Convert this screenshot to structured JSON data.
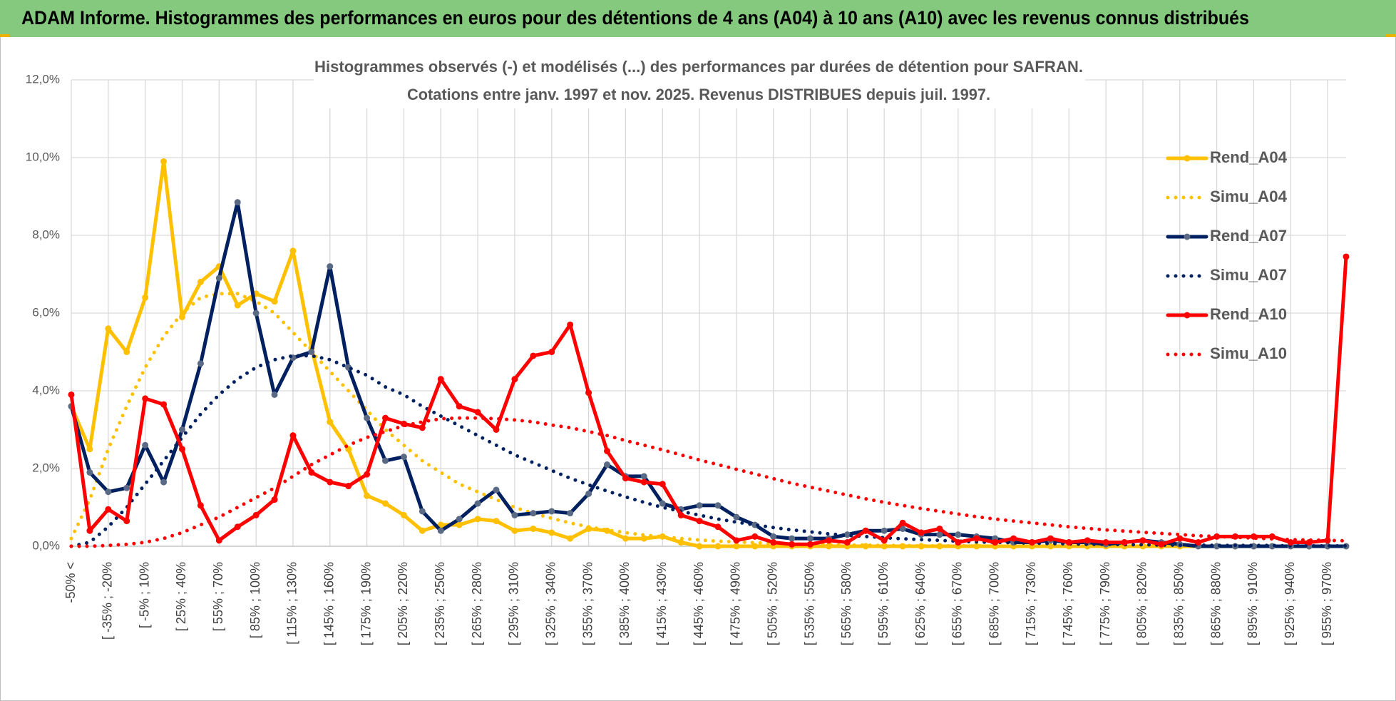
{
  "header": {
    "title": "ADAM Informe. Histogrammes des performances en euros pour des détentions de 4 ans (A04) à 10 ans (A10) avec les revenus connus distribués"
  },
  "chart_data": {
    "type": "line",
    "title": "Histogrammes observés (-) et modélisés (...) des performances par durées de détention pour SAFRAN.",
    "subtitle": "Cotations entre janv. 1997 et nov. 2025. Revenus DISTRIBUES depuis juil. 1997.",
    "categories": [
      "-50% <",
      null,
      "[ -35% ; -20%",
      null,
      "[ -5% ; 10%",
      null,
      "[ 25% ; 40%",
      null,
      "[ 55% ; 70%",
      null,
      "[ 85% ; 100%",
      null,
      "[ 115% ; 130%",
      null,
      "[ 145% ; 160%",
      null,
      "[ 175% ; 190%",
      null,
      "[ 205% ; 220%",
      null,
      "[ 235% ; 250%",
      null,
      "[ 265% ; 280%",
      null,
      "[ 295% ; 310%",
      null,
      "[ 325% ; 340%",
      null,
      "[ 355% ; 370%",
      null,
      "[ 385% ; 400%",
      null,
      "[ 415% ; 430%",
      null,
      "[ 445% ; 460%",
      null,
      "[ 475% ; 490%",
      null,
      "[ 505% ; 520%",
      null,
      "[ 535% ; 550%",
      null,
      "[ 565% ; 580%",
      null,
      "[ 595% ; 610%",
      null,
      "[ 625% ; 640%",
      null,
      "[ 655% ; 670%",
      null,
      "[ 685% ; 700%",
      null,
      "[ 715% ; 730%",
      null,
      "[ 745% ; 760%",
      null,
      "[ 775% ; 790%",
      null,
      "[ 805% ; 820%",
      null,
      "[ 835% ; 850%",
      null,
      "[ 865% ; 880%",
      null,
      "[ 895% ; 910%",
      null,
      "[ 925% ; 940%",
      null,
      "[ 955% ; 970%",
      null
    ],
    "ylim": [
      0,
      12
    ],
    "yticks": [
      {
        "value": 0,
        "label": "0,0%"
      },
      {
        "value": 2,
        "label": "2,0%"
      },
      {
        "value": 4,
        "label": "4,0%"
      },
      {
        "value": 6,
        "label": "6,0%"
      },
      {
        "value": 8,
        "label": "8,0%"
      },
      {
        "value": 10,
        "label": "10,0%"
      },
      {
        "value": 12,
        "label": "12,0%"
      }
    ],
    "grid": true,
    "legend": "right",
    "series": [
      {
        "name": "Rend_A04",
        "color": "#ffc000",
        "style": "solid",
        "marker_color": "#ffc000",
        "values": [
          3.6,
          2.5,
          5.6,
          5.0,
          6.4,
          9.9,
          5.9,
          6.8,
          7.2,
          6.2,
          6.5,
          6.3,
          7.6,
          5.1,
          3.2,
          2.5,
          1.3,
          1.1,
          0.8,
          0.4,
          0.55,
          0.55,
          0.7,
          0.65,
          0.4,
          0.45,
          0.35,
          0.2,
          0.45,
          0.4,
          0.2,
          0.2,
          0.25,
          0.1,
          0,
          0,
          0,
          0,
          0,
          0,
          0,
          0,
          0,
          0,
          0,
          0,
          0,
          0,
          0,
          0,
          0,
          0,
          0,
          0,
          0,
          0,
          0,
          0,
          0,
          0,
          0,
          0,
          0,
          0,
          0,
          0,
          0,
          0,
          0,
          0
        ]
      },
      {
        "name": "Simu_A04",
        "color": "#ffc000",
        "style": "dotted",
        "values": [
          0.2,
          1.2,
          2.5,
          3.6,
          4.6,
          5.4,
          6.0,
          6.4,
          6.5,
          6.5,
          6.3,
          6.0,
          5.5,
          5.0,
          4.5,
          4.0,
          3.5,
          3.0,
          2.6,
          2.2,
          1.9,
          1.6,
          1.4,
          1.2,
          1.0,
          0.85,
          0.72,
          0.6,
          0.5,
          0.42,
          0.35,
          0.29,
          0.24,
          0.2,
          0.16,
          0.13,
          0.11,
          0.09,
          0.07,
          0.06,
          0.05,
          0.04,
          0.03,
          0.03,
          0.02,
          0.02,
          0.01,
          0.01,
          0.01,
          0.01,
          0,
          0,
          0,
          0,
          0,
          0,
          0,
          0,
          0,
          0,
          0,
          0,
          0,
          0,
          0,
          0,
          0,
          0,
          0,
          0
        ]
      },
      {
        "name": "Rend_A07",
        "color": "#002060",
        "style": "solid",
        "marker_color": "#5a6a85",
        "values": [
          3.6,
          1.9,
          1.4,
          1.5,
          2.6,
          1.65,
          3.0,
          4.7,
          6.9,
          8.85,
          6.0,
          3.9,
          4.85,
          5.0,
          7.2,
          4.6,
          3.3,
          2.2,
          2.3,
          0.9,
          0.4,
          0.7,
          1.1,
          1.45,
          0.8,
          0.85,
          0.9,
          0.85,
          1.35,
          2.1,
          1.8,
          1.8,
          1.1,
          0.95,
          1.05,
          1.05,
          0.75,
          0.55,
          0.25,
          0.2,
          0.2,
          0.2,
          0.3,
          0.4,
          0.4,
          0.45,
          0.3,
          0.3,
          0.3,
          0.25,
          0.2,
          0.1,
          0.1,
          0.15,
          0.1,
          0.1,
          0.05,
          0.1,
          0.15,
          0.1,
          0.05,
          0,
          0,
          0,
          0,
          0,
          0,
          0,
          0,
          0
        ]
      },
      {
        "name": "Simu_A07",
        "color": "#002060",
        "style": "dotted",
        "values": [
          0,
          0.1,
          0.5,
          1.0,
          1.6,
          2.2,
          2.8,
          3.4,
          3.9,
          4.3,
          4.6,
          4.8,
          4.9,
          4.9,
          4.8,
          4.6,
          4.4,
          4.1,
          3.9,
          3.6,
          3.35,
          3.1,
          2.85,
          2.6,
          2.35,
          2.15,
          1.95,
          1.75,
          1.58,
          1.42,
          1.27,
          1.13,
          1.0,
          0.9,
          0.8,
          0.7,
          0.62,
          0.55,
          0.48,
          0.42,
          0.37,
          0.32,
          0.28,
          0.25,
          0.22,
          0.19,
          0.17,
          0.15,
          0.13,
          0.11,
          0.1,
          0.09,
          0.08,
          0.07,
          0.06,
          0.05,
          0.05,
          0.04,
          0.04,
          0.03,
          0.03,
          0.03,
          0.02,
          0.02,
          0.02,
          0.02,
          0.01,
          0.01,
          0.01,
          0.01
        ]
      },
      {
        "name": "Rend_A10",
        "color": "#ff0000",
        "style": "solid",
        "marker_color": "#ff0000",
        "values": [
          3.9,
          0.4,
          0.95,
          0.65,
          3.8,
          3.65,
          2.5,
          1.05,
          0.15,
          0.5,
          0.8,
          1.2,
          2.85,
          1.9,
          1.65,
          1.55,
          1.85,
          3.3,
          3.15,
          3.05,
          4.3,
          3.6,
          3.45,
          3.0,
          4.3,
          4.9,
          5.0,
          5.7,
          3.95,
          2.45,
          1.75,
          1.65,
          1.6,
          0.8,
          0.65,
          0.5,
          0.15,
          0.25,
          0.1,
          0.05,
          0.05,
          0.15,
          0.1,
          0.4,
          0.15,
          0.6,
          0.35,
          0.45,
          0.1,
          0.2,
          0.1,
          0.2,
          0.1,
          0.2,
          0.1,
          0.15,
          0.1,
          0.1,
          0.15,
          0.05,
          0.2,
          0.1,
          0.25,
          0.25,
          0.25,
          0.25,
          0.1,
          0.1,
          0.15,
          7.45
        ]
      },
      {
        "name": "Simu_A10",
        "color": "#ff0000",
        "style": "dotted",
        "values": [
          0,
          0,
          0.02,
          0.05,
          0.1,
          0.2,
          0.35,
          0.55,
          0.75,
          1.0,
          1.25,
          1.5,
          1.8,
          2.1,
          2.35,
          2.6,
          2.8,
          2.95,
          3.1,
          3.2,
          3.28,
          3.3,
          3.3,
          3.28,
          3.25,
          3.2,
          3.12,
          3.05,
          2.95,
          2.85,
          2.72,
          2.6,
          2.48,
          2.35,
          2.22,
          2.1,
          1.98,
          1.86,
          1.74,
          1.62,
          1.52,
          1.42,
          1.32,
          1.22,
          1.13,
          1.05,
          0.97,
          0.9,
          0.83,
          0.76,
          0.7,
          0.65,
          0.6,
          0.55,
          0.5,
          0.46,
          0.42,
          0.39,
          0.36,
          0.33,
          0.3,
          0.27,
          0.25,
          0.23,
          0.21,
          0.19,
          0.17,
          0.16,
          0.15,
          0.14
        ]
      }
    ]
  }
}
